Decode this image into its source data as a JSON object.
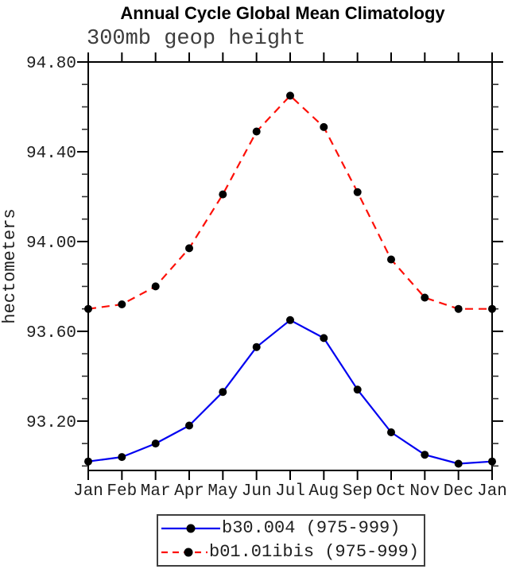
{
  "chart_data": {
    "type": "line",
    "title": "Annual Cycle Global Mean Climatology",
    "subtitle": "300mb geop height",
    "ylabel": "hectometers",
    "xlabel": "",
    "ylim": [
      92.98,
      94.8
    ],
    "ytick_labels": [
      "94.80",
      "94.40",
      "94.00",
      "93.60",
      "93.20"
    ],
    "ytick_major": [
      94.8,
      94.4,
      94.0,
      93.6,
      93.2
    ],
    "ytick_minor_step": 0.1,
    "ytick_minor_range": [
      93.0,
      94.8
    ],
    "grid": false,
    "legend_position": "bottom-center",
    "categories": [
      "Jan",
      "Feb",
      "Mar",
      "Apr",
      "May",
      "Jun",
      "Jul",
      "Aug",
      "Sep",
      "Oct",
      "Nov",
      "Dec",
      "Jan"
    ],
    "series": [
      {
        "name": "b30.004 (975-999)",
        "color": "#0000f0",
        "line_style": "solid",
        "marker": "filled-circle",
        "marker_color": "#000000",
        "values": [
          93.02,
          93.04,
          93.1,
          93.18,
          93.33,
          93.53,
          93.65,
          93.57,
          93.34,
          93.15,
          93.05,
          93.01,
          93.02
        ]
      },
      {
        "name": "b01.01ibis (975-999)",
        "color": "#fd1008",
        "line_style": "dashed",
        "marker": "filled-circle",
        "marker_color": "#000000",
        "values": [
          93.7,
          93.72,
          93.8,
          93.97,
          94.21,
          94.49,
          94.65,
          94.51,
          94.22,
          93.92,
          93.75,
          93.7,
          93.7
        ]
      }
    ]
  }
}
